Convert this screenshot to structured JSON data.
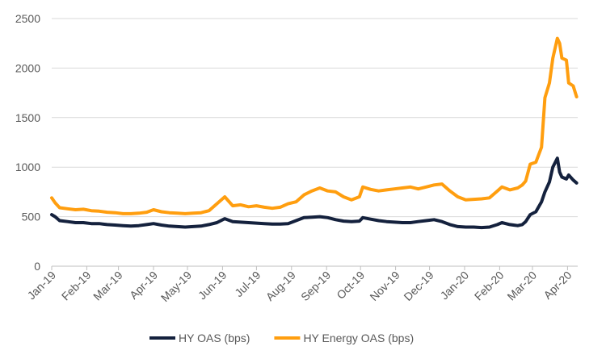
{
  "chart_data": {
    "type": "line",
    "title": "",
    "xlabel": "",
    "ylabel": "",
    "ylim": [
      0,
      2500
    ],
    "yticks": [
      0,
      500,
      1000,
      1500,
      2000,
      2500
    ],
    "xlim": [
      "2019-01-01",
      "2020-04-10"
    ],
    "xticks": [
      {
        "date": "2019-01-01",
        "label": "Jan-19"
      },
      {
        "date": "2019-02-01",
        "label": "Feb-19"
      },
      {
        "date": "2019-03-01",
        "label": "Mar-19"
      },
      {
        "date": "2019-04-01",
        "label": "Apr-19"
      },
      {
        "date": "2019-05-01",
        "label": "May-19"
      },
      {
        "date": "2019-06-01",
        "label": "Jun-19"
      },
      {
        "date": "2019-07-01",
        "label": "Jul-19"
      },
      {
        "date": "2019-08-01",
        "label": "Aug-19"
      },
      {
        "date": "2019-09-01",
        "label": "Sep-19"
      },
      {
        "date": "2019-10-01",
        "label": "Oct-19"
      },
      {
        "date": "2019-11-01",
        "label": "Nov-19"
      },
      {
        "date": "2019-12-01",
        "label": "Dec-19"
      },
      {
        "date": "2020-01-01",
        "label": "Jan-20"
      },
      {
        "date": "2020-02-01",
        "label": "Feb-20"
      },
      {
        "date": "2020-03-01",
        "label": "Mar-20"
      },
      {
        "date": "2020-04-01",
        "label": "Apr-20"
      }
    ],
    "grid": "horizontal",
    "legend_position": "bottom",
    "series": [
      {
        "name": "HY OAS (bps)",
        "color": "#14213d",
        "points": [
          [
            "2019-01-01",
            520
          ],
          [
            "2019-01-04",
            500
          ],
          [
            "2019-01-08",
            460
          ],
          [
            "2019-01-15",
            450
          ],
          [
            "2019-01-22",
            440
          ],
          [
            "2019-01-29",
            440
          ],
          [
            "2019-02-05",
            430
          ],
          [
            "2019-02-12",
            430
          ],
          [
            "2019-02-19",
            420
          ],
          [
            "2019-02-26",
            415
          ],
          [
            "2019-03-05",
            410
          ],
          [
            "2019-03-12",
            405
          ],
          [
            "2019-03-19",
            410
          ],
          [
            "2019-03-26",
            420
          ],
          [
            "2019-04-01",
            430
          ],
          [
            "2019-04-08",
            415
          ],
          [
            "2019-04-15",
            405
          ],
          [
            "2019-04-22",
            400
          ],
          [
            "2019-04-29",
            395
          ],
          [
            "2019-05-06",
            400
          ],
          [
            "2019-05-13",
            405
          ],
          [
            "2019-05-20",
            420
          ],
          [
            "2019-05-27",
            440
          ],
          [
            "2019-06-03",
            480
          ],
          [
            "2019-06-10",
            450
          ],
          [
            "2019-06-17",
            445
          ],
          [
            "2019-06-24",
            440
          ],
          [
            "2019-07-01",
            435
          ],
          [
            "2019-07-08",
            430
          ],
          [
            "2019-07-15",
            425
          ],
          [
            "2019-07-22",
            425
          ],
          [
            "2019-07-29",
            430
          ],
          [
            "2019-08-05",
            460
          ],
          [
            "2019-08-12",
            490
          ],
          [
            "2019-08-19",
            495
          ],
          [
            "2019-08-26",
            500
          ],
          [
            "2019-09-02",
            490
          ],
          [
            "2019-09-09",
            470
          ],
          [
            "2019-09-16",
            455
          ],
          [
            "2019-09-23",
            450
          ],
          [
            "2019-09-30",
            455
          ],
          [
            "2019-10-03",
            490
          ],
          [
            "2019-10-10",
            475
          ],
          [
            "2019-10-17",
            460
          ],
          [
            "2019-10-24",
            450
          ],
          [
            "2019-10-31",
            445
          ],
          [
            "2019-11-07",
            440
          ],
          [
            "2019-11-14",
            440
          ],
          [
            "2019-11-21",
            450
          ],
          [
            "2019-11-28",
            460
          ],
          [
            "2019-12-05",
            470
          ],
          [
            "2019-12-12",
            450
          ],
          [
            "2019-12-19",
            420
          ],
          [
            "2019-12-26",
            400
          ],
          [
            "2020-01-02",
            395
          ],
          [
            "2020-01-09",
            395
          ],
          [
            "2020-01-16",
            390
          ],
          [
            "2020-01-23",
            395
          ],
          [
            "2020-01-30",
            420
          ],
          [
            "2020-02-03",
            440
          ],
          [
            "2020-02-10",
            420
          ],
          [
            "2020-02-17",
            410
          ],
          [
            "2020-02-21",
            420
          ],
          [
            "2020-02-24",
            450
          ],
          [
            "2020-02-28",
            520
          ],
          [
            "2020-03-04",
            550
          ],
          [
            "2020-03-09",
            650
          ],
          [
            "2020-03-12",
            750
          ],
          [
            "2020-03-16",
            850
          ],
          [
            "2020-03-19",
            1000
          ],
          [
            "2020-03-23",
            1090
          ],
          [
            "2020-03-25",
            950
          ],
          [
            "2020-03-27",
            900
          ],
          [
            "2020-03-31",
            880
          ],
          [
            "2020-04-02",
            920
          ],
          [
            "2020-04-06",
            870
          ],
          [
            "2020-04-09",
            840
          ]
        ]
      },
      {
        "name": "HY Energy OAS (bps)",
        "color": "#ff9e0f",
        "points": [
          [
            "2019-01-01",
            690
          ],
          [
            "2019-01-04",
            640
          ],
          [
            "2019-01-08",
            590
          ],
          [
            "2019-01-15",
            580
          ],
          [
            "2019-01-22",
            570
          ],
          [
            "2019-01-29",
            575
          ],
          [
            "2019-02-05",
            560
          ],
          [
            "2019-02-12",
            555
          ],
          [
            "2019-02-19",
            545
          ],
          [
            "2019-02-26",
            540
          ],
          [
            "2019-03-05",
            530
          ],
          [
            "2019-03-12",
            530
          ],
          [
            "2019-03-19",
            535
          ],
          [
            "2019-03-26",
            545
          ],
          [
            "2019-04-01",
            570
          ],
          [
            "2019-04-08",
            550
          ],
          [
            "2019-04-15",
            540
          ],
          [
            "2019-04-22",
            535
          ],
          [
            "2019-04-29",
            530
          ],
          [
            "2019-05-06",
            535
          ],
          [
            "2019-05-13",
            540
          ],
          [
            "2019-05-20",
            560
          ],
          [
            "2019-05-27",
            630
          ],
          [
            "2019-06-03",
            700
          ],
          [
            "2019-06-10",
            610
          ],
          [
            "2019-06-17",
            620
          ],
          [
            "2019-06-24",
            600
          ],
          [
            "2019-07-01",
            610
          ],
          [
            "2019-07-08",
            595
          ],
          [
            "2019-07-15",
            585
          ],
          [
            "2019-07-22",
            595
          ],
          [
            "2019-07-29",
            630
          ],
          [
            "2019-08-05",
            650
          ],
          [
            "2019-08-12",
            720
          ],
          [
            "2019-08-19",
            760
          ],
          [
            "2019-08-26",
            790
          ],
          [
            "2019-09-02",
            760
          ],
          [
            "2019-09-09",
            750
          ],
          [
            "2019-09-16",
            700
          ],
          [
            "2019-09-23",
            670
          ],
          [
            "2019-09-30",
            700
          ],
          [
            "2019-10-03",
            800
          ],
          [
            "2019-10-10",
            775
          ],
          [
            "2019-10-17",
            760
          ],
          [
            "2019-10-24",
            770
          ],
          [
            "2019-10-31",
            780
          ],
          [
            "2019-11-07",
            790
          ],
          [
            "2019-11-14",
            800
          ],
          [
            "2019-11-21",
            780
          ],
          [
            "2019-11-28",
            800
          ],
          [
            "2019-12-05",
            820
          ],
          [
            "2019-12-12",
            830
          ],
          [
            "2019-12-19",
            760
          ],
          [
            "2019-12-26",
            700
          ],
          [
            "2020-01-02",
            670
          ],
          [
            "2020-01-09",
            675
          ],
          [
            "2020-01-16",
            680
          ],
          [
            "2020-01-23",
            690
          ],
          [
            "2020-01-30",
            760
          ],
          [
            "2020-02-03",
            800
          ],
          [
            "2020-02-10",
            770
          ],
          [
            "2020-02-17",
            790
          ],
          [
            "2020-02-21",
            820
          ],
          [
            "2020-02-24",
            860
          ],
          [
            "2020-02-28",
            1030
          ],
          [
            "2020-03-04",
            1050
          ],
          [
            "2020-03-09",
            1200
          ],
          [
            "2020-03-12",
            1700
          ],
          [
            "2020-03-16",
            1850
          ],
          [
            "2020-03-19",
            2100
          ],
          [
            "2020-03-23",
            2300
          ],
          [
            "2020-03-25",
            2250
          ],
          [
            "2020-03-27",
            2100
          ],
          [
            "2020-03-31",
            2080
          ],
          [
            "2020-04-02",
            1850
          ],
          [
            "2020-04-06",
            1820
          ],
          [
            "2020-04-09",
            1710
          ]
        ]
      }
    ]
  }
}
